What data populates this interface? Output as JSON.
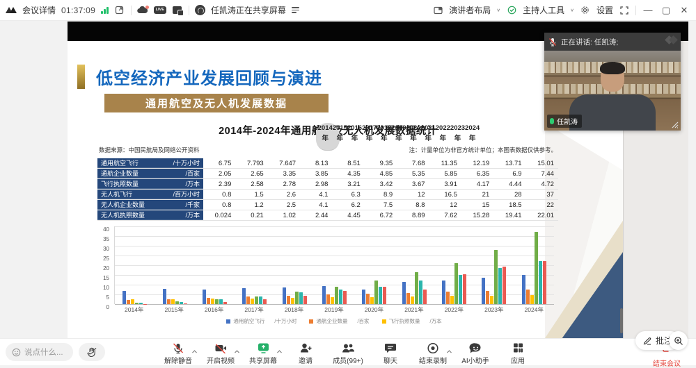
{
  "topbar": {
    "meeting_details": "会议详情",
    "timer": "01:37:09",
    "live_badge": "LIVE",
    "sharing_status": "任凯涛正在共享屏幕",
    "layout_label": "演讲者布局",
    "host_tools_label": "主持人工具",
    "settings_label": "设置"
  },
  "speaker_panel": {
    "speaking_label": "正在讲话: 任凯涛;",
    "name_label": "任凯涛"
  },
  "slide": {
    "title": "低空经济产业发展回顾与演进",
    "subtitle": "通用航空及无人机发展数据",
    "table_title": "2014年-2024年通用航空及无人机发展数据统计",
    "source_note": "数据来源：中国民航局及网络公开资料",
    "unit_note": "注：计量单位为非官方统计单位；本图表数据仅供参考。",
    "table": {
      "corner_label": "/",
      "years": [
        "2014年",
        "2015年",
        "2016年",
        "2017年",
        "2018年",
        "2019年",
        "2020年",
        "2021年",
        "2022年",
        "2023年",
        "2024年"
      ],
      "rows": [
        {
          "name": "通用航空飞行",
          "unit": "/十万小时",
          "values": [
            "6.75",
            "7.793",
            "7.647",
            "8.13",
            "8.51",
            "9.35",
            "7.68",
            "11.35",
            "12.19",
            "13.71",
            "15.01"
          ]
        },
        {
          "name": "通航企业数量",
          "unit": "/百家",
          "values": [
            "2.05",
            "2.65",
            "3.35",
            "3.85",
            "4.35",
            "4.85",
            "5.35",
            "5.85",
            "6.35",
            "6.9",
            "7.44"
          ]
        },
        {
          "name": "飞行执照数量",
          "unit": "/万本",
          "values": [
            "2.39",
            "2.58",
            "2.78",
            "2.98",
            "3.21",
            "3.42",
            "3.67",
            "3.91",
            "4.17",
            "4.44",
            "4.72"
          ]
        },
        {
          "name": "无人机飞行",
          "unit": "/百万小时",
          "values": [
            "0.8",
            "1.5",
            "2.6",
            "4.1",
            "6.3",
            "8.9",
            "12",
            "16.5",
            "21",
            "28",
            "37"
          ]
        },
        {
          "name": "无人机企业数量",
          "unit": "/千家",
          "values": [
            "0.8",
            "1.2",
            "2.5",
            "4.1",
            "6.2",
            "7.5",
            "8.8",
            "12",
            "15",
            "18.5",
            "22"
          ]
        },
        {
          "name": "无人机执照数量",
          "unit": "/万本",
          "values": [
            "0.024",
            "0.21",
            "1.02",
            "2.44",
            "4.45",
            "6.72",
            "8.89",
            "7.62",
            "15.28",
            "19.41",
            "22.01"
          ]
        }
      ]
    }
  },
  "chart_data": {
    "type": "bar",
    "title": "2014年-2024年通用航空及无人机发展数据统计",
    "categories": [
      "2014年",
      "2015年",
      "2016年",
      "2017年",
      "2018年",
      "2019年",
      "2020年",
      "2021年",
      "2022年",
      "2023年",
      "2024年"
    ],
    "series": [
      {
        "name": "通用航空飞行",
        "unit": "/十万小时",
        "color": "#4472c4",
        "values": [
          6.75,
          7.793,
          7.647,
          8.13,
          8.51,
          9.35,
          7.68,
          11.35,
          12.19,
          13.71,
          15.01
        ]
      },
      {
        "name": "通航企业数量",
        "unit": "/百家",
        "color": "#ed7d31",
        "values": [
          2.05,
          2.65,
          3.35,
          3.85,
          4.35,
          4.85,
          5.35,
          5.85,
          6.35,
          6.9,
          7.44
        ]
      },
      {
        "name": "飞行执照数量",
        "unit": "/万本",
        "color": "#ffc000",
        "values": [
          2.39,
          2.58,
          2.78,
          2.98,
          3.21,
          3.42,
          3.67,
          3.91,
          4.17,
          4.44,
          4.72
        ]
      },
      {
        "name": "无人机飞行",
        "unit": "/百万小时",
        "color": "#70ad47",
        "values": [
          0.8,
          1.5,
          2.6,
          4.1,
          6.3,
          8.9,
          12,
          16.5,
          21,
          28,
          37
        ]
      },
      {
        "name": "无人机企业数量",
        "unit": "/千家",
        "color": "#2cb5ac",
        "values": [
          0.8,
          1.2,
          2.5,
          4.1,
          6.2,
          7.5,
          8.8,
          12,
          15,
          18.5,
          22
        ]
      },
      {
        "name": "无人机执照数量",
        "unit": "/万本",
        "color": "#ea5a52",
        "values": [
          0.024,
          0.21,
          1.02,
          2.44,
          4.45,
          6.72,
          8.89,
          7.62,
          15.28,
          19.41,
          22.01
        ]
      }
    ],
    "ylim": [
      0,
      40
    ],
    "yticks": [
      0,
      5,
      10,
      15,
      20,
      25,
      30,
      35,
      40
    ],
    "grid": true,
    "legend_position": "bottom",
    "legend_visible_count": 3,
    "xlabel": "",
    "ylabel": ""
  },
  "overlay": {
    "annotate_label": "批注"
  },
  "bottom": {
    "chat_placeholder": "说点什么...",
    "toolbar": [
      {
        "label": "解除静音",
        "caret": true
      },
      {
        "label": "开启视频",
        "caret": true
      },
      {
        "label": "共享屏幕",
        "caret": true
      },
      {
        "label": "邀请",
        "caret": false
      },
      {
        "label": "成员(99+)",
        "caret": false
      },
      {
        "label": "聊天",
        "caret": false
      },
      {
        "label": "结束录制",
        "caret": true
      },
      {
        "label": "AI小助手",
        "caret": false
      },
      {
        "label": "应用",
        "caret": false
      }
    ],
    "end_meeting_label": "结束会议"
  }
}
